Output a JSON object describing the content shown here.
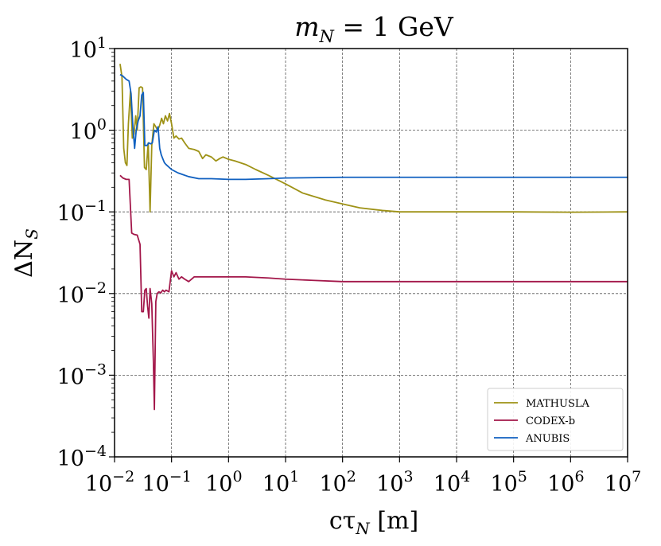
{
  "chart_data": {
    "type": "line",
    "title": {
      "base": "m",
      "sub": "N",
      "rest": " = 1 GeV"
    },
    "xlabel": {
      "base": "cτ",
      "sub": "N",
      "rest": " [m]"
    },
    "ylabel": {
      "base": "ΔN",
      "sub": "S"
    },
    "xscale": "log",
    "yscale": "log",
    "xlim": [
      0.01,
      10000000
    ],
    "ylim": [
      0.0001,
      10
    ],
    "x_ticks": [
      {
        "base": "10",
        "exp": "−2",
        "value": 0.01
      },
      {
        "base": "10",
        "exp": "−1",
        "value": 0.1
      },
      {
        "base": "10",
        "exp": "0",
        "value": 1
      },
      {
        "base": "10",
        "exp": "1",
        "value": 10
      },
      {
        "base": "10",
        "exp": "2",
        "value": 100
      },
      {
        "base": "10",
        "exp": "3",
        "value": 1000
      },
      {
        "base": "10",
        "exp": "4",
        "value": 10000
      },
      {
        "base": "10",
        "exp": "5",
        "value": 100000
      },
      {
        "base": "10",
        "exp": "6",
        "value": 1000000
      },
      {
        "base": "10",
        "exp": "7",
        "value": 10000000
      }
    ],
    "y_ticks": [
      {
        "base": "10",
        "exp": "1",
        "value": 10
      },
      {
        "base": "10",
        "exp": "0",
        "value": 1
      },
      {
        "base": "10",
        "exp": "−1",
        "value": 0.1
      },
      {
        "base": "10",
        "exp": "−2",
        "value": 0.01
      },
      {
        "base": "10",
        "exp": "−3",
        "value": 0.001
      },
      {
        "base": "10",
        "exp": "−4",
        "value": 0.0001
      }
    ],
    "grid": true,
    "legend_position": "bottom-right",
    "series": [
      {
        "name": "MATHUSLA",
        "color": "#9e9216",
        "x": [
          0.0125,
          0.0135,
          0.0145,
          0.0155,
          0.0165,
          0.0175,
          0.019,
          0.0205,
          0.022,
          0.0235,
          0.025,
          0.027,
          0.029,
          0.031,
          0.0335,
          0.036,
          0.039,
          0.042,
          0.045,
          0.049,
          0.053,
          0.057,
          0.062,
          0.067,
          0.072,
          0.078,
          0.085,
          0.092,
          0.1,
          0.11,
          0.12,
          0.135,
          0.15,
          0.17,
          0.2,
          0.25,
          0.3,
          0.35,
          0.4,
          0.5,
          0.6,
          0.7,
          0.8,
          1.0,
          1.3,
          2.0,
          3.0,
          5.0,
          10,
          20,
          50,
          100,
          200,
          500,
          1000,
          10000,
          100000,
          1000000,
          10000000
        ],
        "y": [
          6.5,
          4.5,
          0.6,
          0.4,
          0.37,
          1.2,
          3.0,
          0.8,
          0.9,
          1.5,
          1.0,
          3.3,
          3.4,
          3.3,
          0.35,
          0.33,
          0.7,
          0.1,
          0.65,
          1.2,
          1.1,
          1.0,
          1.15,
          1.4,
          1.2,
          1.5,
          1.3,
          1.6,
          1.2,
          0.8,
          0.85,
          0.78,
          0.8,
          0.7,
          0.6,
          0.58,
          0.55,
          0.45,
          0.5,
          0.47,
          0.42,
          0.45,
          0.47,
          0.44,
          0.42,
          0.38,
          0.33,
          0.28,
          0.22,
          0.17,
          0.14,
          0.125,
          0.112,
          0.104,
          0.1,
          0.1,
          0.1,
          0.099,
          0.1
        ]
      },
      {
        "name": "CODEX-b",
        "color": "#a3174a",
        "x": [
          0.0125,
          0.014,
          0.016,
          0.018,
          0.02,
          0.022,
          0.025,
          0.028,
          0.03,
          0.032,
          0.034,
          0.036,
          0.038,
          0.04,
          0.042,
          0.045,
          0.048,
          0.05,
          0.053,
          0.056,
          0.06,
          0.065,
          0.07,
          0.075,
          0.08,
          0.09,
          0.1,
          0.11,
          0.12,
          0.135,
          0.15,
          0.17,
          0.2,
          0.25,
          0.3,
          0.5,
          1.0,
          2.0,
          5.0,
          10,
          30,
          100,
          1000,
          100000,
          10000000
        ],
        "y": [
          0.28,
          0.26,
          0.25,
          0.25,
          0.055,
          0.053,
          0.052,
          0.04,
          0.006,
          0.006,
          0.011,
          0.0115,
          0.007,
          0.005,
          0.0115,
          0.0075,
          0.0015,
          0.00038,
          0.008,
          0.01,
          0.0105,
          0.0102,
          0.011,
          0.0105,
          0.011,
          0.0105,
          0.019,
          0.016,
          0.018,
          0.015,
          0.016,
          0.015,
          0.014,
          0.016,
          0.016,
          0.016,
          0.016,
          0.016,
          0.0155,
          0.015,
          0.0145,
          0.014,
          0.014,
          0.014,
          0.014
        ]
      },
      {
        "name": "ANUBIS",
        "color": "#1060c0",
        "x": [
          0.0125,
          0.014,
          0.016,
          0.018,
          0.0195,
          0.021,
          0.0225,
          0.024,
          0.026,
          0.028,
          0.03,
          0.032,
          0.034,
          0.037,
          0.04,
          0.043,
          0.046,
          0.05,
          0.054,
          0.058,
          0.062,
          0.066,
          0.07,
          0.075,
          0.08,
          0.1,
          0.13,
          0.2,
          0.3,
          0.5,
          1.0,
          2.0,
          5.0,
          10,
          100,
          1000,
          100000,
          10000000
        ],
        "y": [
          4.8,
          4.6,
          4.2,
          4.0,
          2.8,
          1.1,
          0.6,
          1.0,
          1.3,
          1.5,
          2.7,
          2.9,
          0.65,
          0.65,
          0.7,
          0.68,
          0.7,
          1.0,
          0.95,
          1.1,
          0.6,
          0.5,
          0.45,
          0.4,
          0.38,
          0.33,
          0.3,
          0.27,
          0.255,
          0.255,
          0.25,
          0.25,
          0.255,
          0.26,
          0.265,
          0.265,
          0.265,
          0.265
        ]
      }
    ]
  }
}
